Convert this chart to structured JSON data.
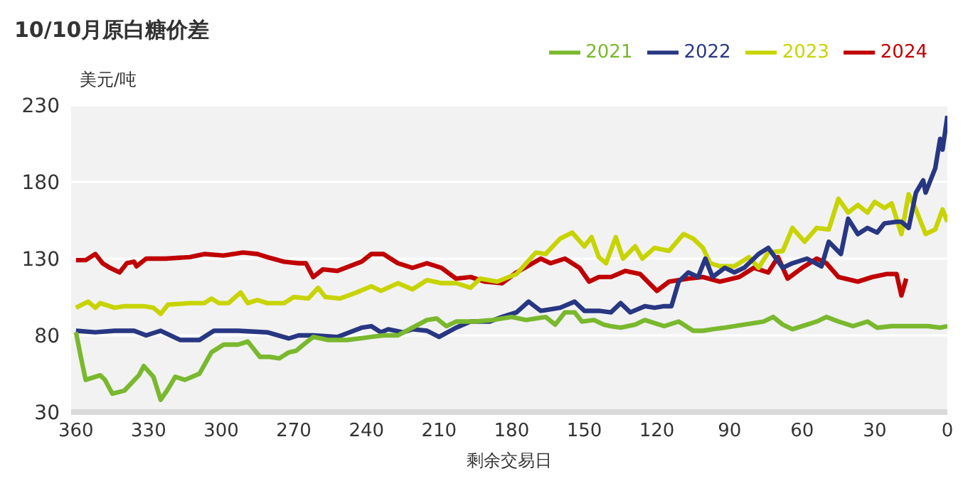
{
  "chart_data": {
    "type": "line",
    "title": "10/10月原白糖价差",
    "xlabel": "剩余交易日",
    "ylabel": "美元/吨",
    "xlim": [
      362,
      0
    ],
    "xticks": [
      360,
      330,
      300,
      270,
      240,
      210,
      180,
      150,
      120,
      90,
      60,
      30,
      0
    ],
    "ylim": [
      30,
      230
    ],
    "yticks": [
      30,
      80,
      130,
      180,
      230
    ],
    "grid": "y",
    "legend": "top right",
    "marker": "none",
    "line_style": "solid",
    "series": [
      {
        "name": "2024",
        "color": "#c00000",
        "x": [
          360,
          356,
          352,
          349,
          346,
          342,
          339,
          336,
          335,
          331,
          323,
          313,
          307,
          299,
          291,
          285,
          281,
          274,
          268,
          265,
          262,
          258,
          252,
          242,
          238,
          233,
          227,
          221,
          215,
          209,
          203,
          197,
          191,
          184,
          178,
          168,
          164,
          158,
          152,
          148,
          144,
          139,
          133,
          127,
          120,
          115,
          107,
          101,
          94,
          86,
          80,
          74,
          70,
          66,
          60,
          54,
          50,
          45,
          37,
          31,
          25,
          21,
          19,
          17
        ],
        "values": [
          129,
          129,
          133,
          127,
          124,
          121,
          127,
          128,
          125,
          130,
          130,
          131,
          133,
          132,
          134,
          133,
          131,
          128,
          127,
          127,
          118,
          123,
          122,
          128,
          133,
          133,
          127,
          124,
          127,
          124,
          117,
          118,
          115,
          114,
          121,
          130,
          127,
          130,
          124,
          115,
          118,
          118,
          122,
          120,
          109,
          115,
          117,
          118,
          115,
          118,
          124,
          121,
          131,
          117,
          124,
          130,
          127,
          118,
          115,
          118,
          120,
          120,
          106,
          117
        ]
      },
      {
        "name": "2023",
        "color": "#c8d400",
        "x": [
          360,
          355,
          352,
          350,
          344,
          340,
          332,
          328,
          325,
          322,
          313,
          307,
          304,
          301,
          297,
          292,
          289,
          285,
          281,
          274,
          270,
          264,
          260,
          257,
          251,
          244,
          238,
          234,
          227,
          221,
          215,
          209,
          203,
          197,
          193,
          186,
          178,
          170,
          166,
          160,
          155,
          150,
          147,
          144,
          141,
          137,
          134,
          129,
          126,
          121,
          115,
          109,
          105,
          101,
          98,
          94,
          88,
          82,
          78,
          74,
          68,
          64,
          59,
          54,
          49,
          45,
          41,
          37,
          33,
          30,
          26,
          23,
          19,
          16,
          13,
          9,
          5,
          2,
          0
        ],
        "values": [
          98,
          102,
          98,
          101,
          98,
          99,
          99,
          98,
          94,
          100,
          101,
          101,
          104,
          101,
          101,
          108,
          101,
          103,
          101,
          101,
          105,
          104,
          111,
          105,
          104,
          108,
          112,
          109,
          114,
          110,
          116,
          114,
          114,
          111,
          117,
          115,
          120,
          134,
          133,
          143,
          147,
          138,
          144,
          131,
          127,
          144,
          130,
          138,
          130,
          137,
          135,
          146,
          143,
          137,
          127,
          125,
          125,
          131,
          124,
          134,
          135,
          150,
          141,
          150,
          149,
          169,
          160,
          165,
          160,
          167,
          163,
          166,
          146,
          172,
          162,
          146,
          149,
          162,
          154
        ]
      },
      {
        "name": "2022",
        "color": "#283782",
        "x": [
          360,
          352,
          344,
          336,
          331,
          325,
          317,
          309,
          303,
          293,
          281,
          272,
          268,
          262,
          252,
          242,
          238,
          234,
          231,
          225,
          221,
          215,
          210,
          203,
          197,
          189,
          184,
          178,
          173,
          168,
          160,
          154,
          150,
          144,
          139,
          135,
          131,
          125,
          121,
          117,
          114,
          111,
          107,
          103,
          100,
          97,
          92,
          88,
          84,
          78,
          74,
          68,
          64,
          58,
          52,
          49,
          44,
          41,
          37,
          33,
          29,
          26,
          21,
          19,
          16,
          13,
          10,
          9,
          5,
          3,
          2,
          0
        ],
        "values": [
          83,
          82,
          83,
          83,
          80,
          83,
          77,
          77,
          83,
          83,
          82,
          78,
          80,
          80,
          79,
          85,
          86,
          82,
          84,
          82,
          84,
          83,
          79,
          85,
          89,
          89,
          92,
          95,
          102,
          96,
          98,
          102,
          96,
          96,
          95,
          101,
          95,
          99,
          98,
          99,
          99,
          115,
          121,
          118,
          130,
          118,
          124,
          121,
          124,
          133,
          137,
          124,
          127,
          130,
          125,
          141,
          133,
          156,
          146,
          150,
          147,
          153,
          154,
          154,
          150,
          173,
          181,
          173,
          189,
          208,
          201,
          223
        ]
      },
      {
        "name": "2021",
        "color": "#7ab82e",
        "x": [
          360,
          358,
          356,
          350,
          348,
          345,
          340,
          334,
          332,
          328,
          325,
          322,
          319,
          315,
          309,
          304,
          299,
          293,
          289,
          284,
          280,
          276,
          272,
          269,
          266,
          262,
          256,
          248,
          238,
          233,
          227,
          221,
          215,
          211,
          207,
          203,
          195,
          188,
          180,
          174,
          166,
          162,
          158,
          154,
          151,
          146,
          142,
          139,
          135,
          129,
          125,
          117,
          111,
          105,
          101,
          97,
          92,
          84,
          76,
          72,
          68,
          64,
          58,
          54,
          50,
          45,
          39,
          33,
          29,
          23,
          16,
          8,
          3,
          0
        ],
        "values": [
          82,
          66,
          51,
          54,
          51,
          42,
          44,
          54,
          60,
          53,
          38,
          45,
          53,
          51,
          55,
          69,
          74,
          74,
          76,
          66,
          66,
          65,
          69,
          70,
          74,
          79,
          77,
          77,
          79,
          80,
          80,
          85,
          90,
          91,
          86,
          89,
          89,
          90,
          92,
          90,
          92,
          87,
          95,
          95,
          89,
          90,
          87,
          86,
          85,
          87,
          90,
          86,
          89,
          83,
          83,
          84,
          85,
          87,
          89,
          92,
          87,
          84,
          87,
          89,
          92,
          89,
          86,
          89,
          85,
          86,
          86,
          86,
          85,
          86
        ]
      }
    ]
  }
}
